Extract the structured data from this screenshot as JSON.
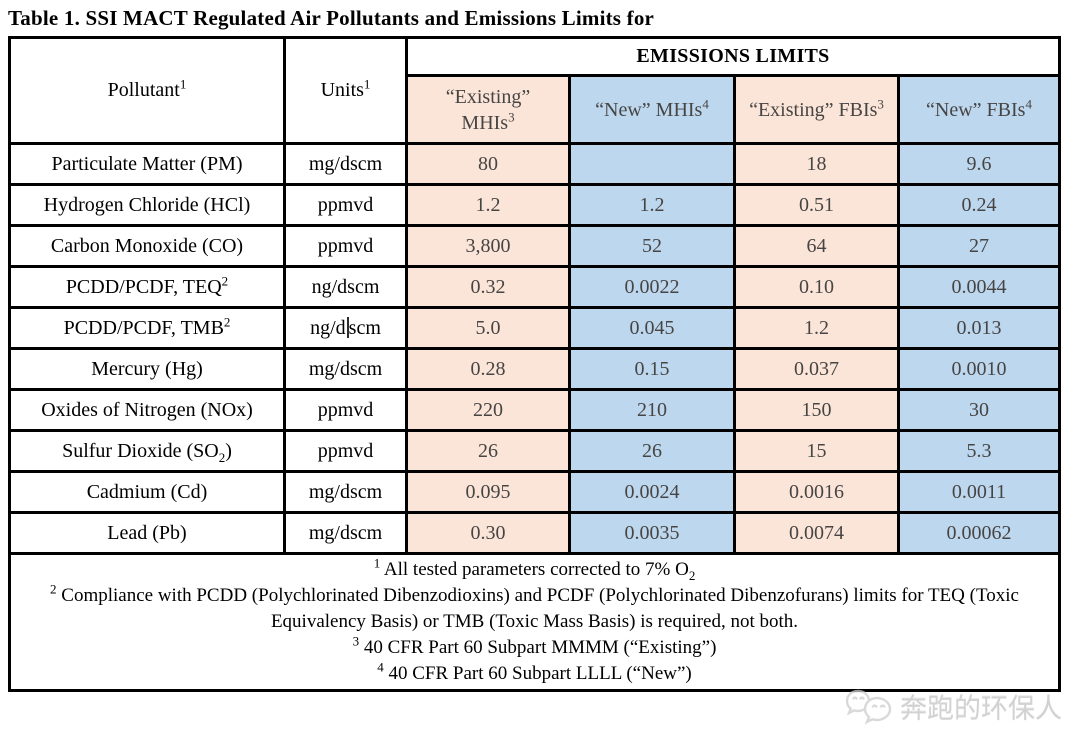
{
  "page": {
    "title": "Table 1. SSI MACT Regulated Air Pollutants and Emissions Limits for"
  },
  "table": {
    "header": {
      "pollutant": "Pollutant^1",
      "units": "Units^1",
      "emissions_limits": "EMISSIONS LIMITS",
      "limit_columns": [
        {
          "key": "existing-mhis",
          "lines": [
            "“Existing”",
            "MHIs^3"
          ],
          "fill": "peach"
        },
        {
          "key": "new-mhis",
          "lines": [
            "“New” MHIs^4"
          ],
          "fill": "blue"
        },
        {
          "key": "existing-fbis",
          "lines": [
            "“Existing” FBIs^3"
          ],
          "fill": "peach"
        },
        {
          "key": "new-fbis",
          "lines": [
            "“New” FBIs^4"
          ],
          "fill": "blue"
        }
      ]
    },
    "rows": [
      {
        "pollutant": "Particulate Matter (PM)",
        "units": "mg/dscm",
        "values": [
          "80",
          "",
          "18",
          "9.6"
        ]
      },
      {
        "pollutant": "Hydrogen Chloride (HCl)",
        "units": "ppmvd",
        "values": [
          "1.2",
          "1.2",
          "0.51",
          "0.24"
        ]
      },
      {
        "pollutant": "Carbon Monoxide (CO)",
        "units": "ppmvd",
        "values": [
          "3,800",
          "52",
          "64",
          "27"
        ]
      },
      {
        "pollutant": "PCDD/PCDF, TEQ^2",
        "units": "ng/dscm",
        "values": [
          "0.32",
          "0.0022",
          "0.10",
          "0.0044"
        ]
      },
      {
        "pollutant": "PCDD/PCDF, TMB^2",
        "units": "ng/d|scm",
        "values": [
          "5.0",
          "0.045",
          "1.2",
          "0.013"
        ]
      },
      {
        "pollutant": "Mercury (Hg)",
        "units": "mg/dscm",
        "values": [
          "0.28",
          "0.15",
          "0.037",
          "0.0010"
        ]
      },
      {
        "pollutant": "Oxides of Nitrogen (NOx)",
        "units": "ppmvd",
        "values": [
          "220",
          "210",
          "150",
          "30"
        ]
      },
      {
        "pollutant": "Sulfur Dioxide (SO_2)",
        "units": "ppmvd",
        "values": [
          "26",
          "26",
          "15",
          "5.3"
        ]
      },
      {
        "pollutant": "Cadmium (Cd)",
        "units": "mg/dscm",
        "values": [
          "0.095",
          "0.0024",
          "0.0016",
          "0.0011"
        ]
      },
      {
        "pollutant": "Lead (Pb)",
        "units": "mg/dscm",
        "values": [
          "0.30",
          "0.0035",
          "0.0074",
          "0.00062"
        ]
      }
    ],
    "footnotes": [
      {
        "sup": "1",
        "text": "All tested parameters corrected to 7% O_2"
      },
      {
        "sup": "2",
        "text": "Compliance with PCDD (Polychlorinated Dibenzodioxins) and PCDF (Polychlorinated Dibenzofurans) limits for TEQ (Toxic Equivalency Basis) or TMB (Toxic Mass Basis) is required, not both."
      },
      {
        "sup": "3",
        "text": "40 CFR Part 60 Subpart MMMM (“Existing”)"
      },
      {
        "sup": "4",
        "text": "40 CFR Part 60 Subpart LLLL (“New”)"
      }
    ]
  },
  "watermark": {
    "icon": "chat-bubbles-logo",
    "text": "奔跑的环保人"
  },
  "colors": {
    "peach": "#fbe5d8",
    "blue": "#bdd7ee",
    "column_border": "#41719c",
    "value_text": "#474544",
    "grid": "#000000"
  }
}
